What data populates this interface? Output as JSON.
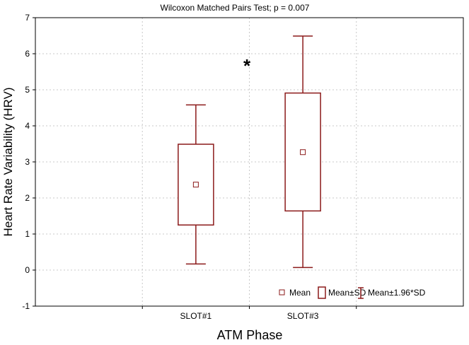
{
  "chart_data": {
    "type": "box",
    "title": "Wilcoxon Matched Pairs Test; p = 0.007",
    "xlabel": "ATM Phase",
    "ylabel": "Heart Rate Variability (HRV)",
    "ylim": [
      -1,
      7
    ],
    "yticks": [
      "-1",
      "0",
      "1",
      "2",
      "3",
      "4",
      "5",
      "6",
      "7"
    ],
    "grid": true,
    "legend_position": "bottom-right",
    "categories": [
      "SLOT#1",
      "SLOT#3"
    ],
    "boxes": [
      {
        "category": "SLOT#1",
        "mean": 2.37,
        "sd_low": 1.25,
        "sd_high": 3.49,
        "ci_low": 0.17,
        "ci_high": 4.58
      },
      {
        "category": "SLOT#3",
        "mean": 3.27,
        "sd_low": 1.64,
        "sd_high": 4.91,
        "ci_low": 0.07,
        "ci_high": 6.49
      }
    ],
    "annotation": "*",
    "legend": {
      "mean": "Mean",
      "sd": "Mean±SD",
      "ci": "Mean±1.96*SD"
    },
    "color": "#8b1a1a"
  }
}
